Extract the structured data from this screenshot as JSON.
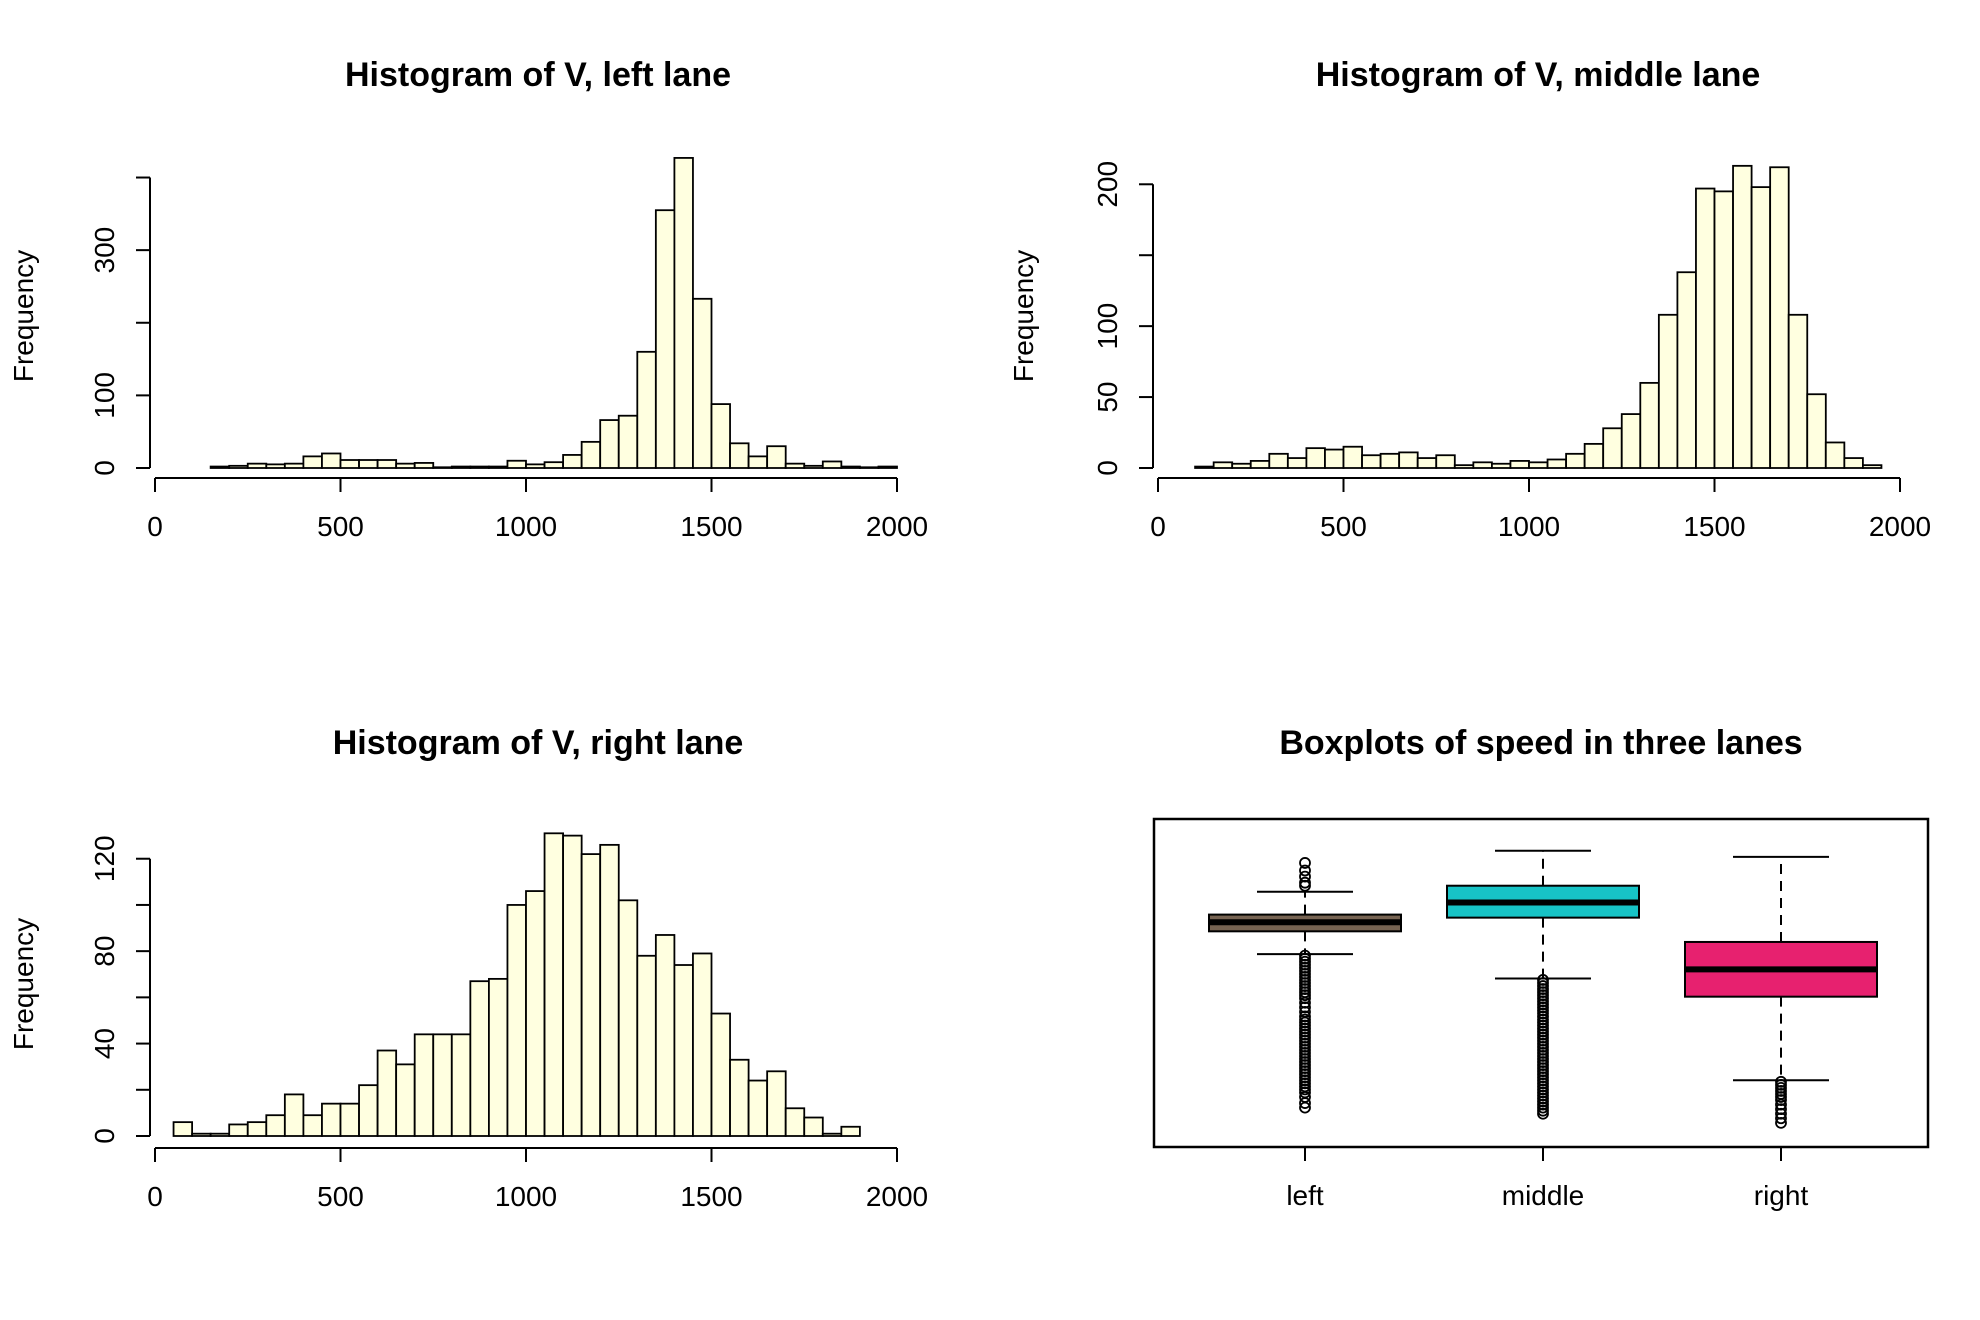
{
  "chart_data": [
    {
      "type": "bar",
      "subtype": "histogram",
      "title": "Histogram of V, left lane",
      "xlabel": "",
      "ylabel": "Frequency",
      "bin_width": 50,
      "bin_start": 150,
      "xlim": [
        0,
        2000
      ],
      "ylim": [
        0,
        420
      ],
      "x_ticks": [
        0,
        500,
        1000,
        1500,
        2000
      ],
      "x_tick_labels": [
        "0",
        "500",
        "1000",
        "1500",
        "2000"
      ],
      "y_ticks": [
        0,
        100,
        200,
        300,
        400
      ],
      "y_tick_labels": [
        "0",
        "100",
        "",
        "300",
        ""
      ],
      "values": [
        2,
        3,
        6,
        5,
        6,
        16,
        20,
        11,
        11,
        11,
        6,
        7,
        1,
        2,
        2,
        2,
        10,
        5,
        8,
        18,
        36,
        66,
        72,
        160,
        355,
        427,
        233,
        88,
        34,
        16,
        30,
        6,
        3,
        9,
        2,
        1,
        2
      ],
      "bar_color": "#ffffe0"
    },
    {
      "type": "bar",
      "subtype": "histogram",
      "title": "Histogram of V, middle lane",
      "xlabel": "",
      "ylabel": "Frequency",
      "bin_width": 50,
      "bin_start": 100,
      "xlim": [
        0,
        2000
      ],
      "ylim": [
        0,
        215
      ],
      "x_ticks": [
        0,
        500,
        1000,
        1500,
        2000
      ],
      "x_tick_labels": [
        "0",
        "500",
        "1000",
        "1500",
        "2000"
      ],
      "y_ticks": [
        0,
        50,
        100,
        150,
        200
      ],
      "y_tick_labels": [
        "0",
        "50",
        "100",
        "",
        "200"
      ],
      "values": [
        1,
        4,
        3,
        5,
        10,
        7,
        14,
        13,
        15,
        9,
        10,
        11,
        7,
        9,
        2,
        4,
        3,
        5,
        4,
        6,
        10,
        17,
        28,
        38,
        60,
        108,
        138,
        197,
        195,
        213,
        198,
        212,
        108,
        52,
        18,
        7,
        2
      ],
      "bar_color": "#ffffe0"
    },
    {
      "type": "bar",
      "subtype": "histogram",
      "title": "Histogram of V, right lane",
      "xlabel": "",
      "ylabel": "Frequency",
      "bin_width": 50,
      "bin_start": 50,
      "xlim": [
        0,
        2000
      ],
      "ylim": [
        0,
        132
      ],
      "x_ticks": [
        0,
        500,
        1000,
        1500,
        2000
      ],
      "x_tick_labels": [
        "0",
        "500",
        "1000",
        "1500",
        "2000"
      ],
      "y_ticks": [
        0,
        20,
        40,
        60,
        80,
        100,
        120
      ],
      "y_tick_labels": [
        "0",
        "",
        "40",
        "",
        "80",
        "",
        "120"
      ],
      "values": [
        6,
        1,
        1,
        5,
        6,
        9,
        18,
        9,
        14,
        14,
        22,
        37,
        31,
        44,
        44,
        44,
        67,
        68,
        100,
        106,
        131,
        130,
        122,
        126,
        102,
        78,
        87,
        74,
        79,
        53,
        33,
        24,
        28,
        12,
        8,
        1,
        4
      ],
      "bar_color": "#ffffe0"
    },
    {
      "type": "boxplot",
      "title": "Boxplots of speed in three lanes",
      "categories": [
        "left",
        "middle",
        "right"
      ],
      "ylim": [
        0,
        2000
      ],
      "boxes": [
        {
          "name": "left",
          "whisker_low": 1190,
          "q1": 1340,
          "median": 1400,
          "q3": 1450,
          "whisker_high": 1600,
          "color": "#766352",
          "outliers": [
            1640,
            1660,
            1700,
            1740,
            1790,
            1180,
            1160,
            1140,
            1120,
            1100,
            1080,
            1060,
            1040,
            1020,
            1000,
            980,
            960,
            940,
            920,
            900,
            870,
            840,
            810,
            780,
            760,
            740,
            720,
            700,
            680,
            660,
            640,
            620,
            600,
            580,
            560,
            540,
            520,
            500,
            480,
            460,
            440,
            420,
            400,
            380,
            360,
            340,
            320,
            300,
            280,
            250,
            210,
            180
          ]
        },
        {
          "name": "middle",
          "whisker_low": 1030,
          "q1": 1430,
          "median": 1530,
          "q3": 1640,
          "whisker_high": 1870,
          "color": "#17c3c6",
          "outliers": [
            1020,
            1000,
            980,
            960,
            940,
            920,
            900,
            880,
            860,
            840,
            820,
            800,
            780,
            760,
            740,
            720,
            700,
            680,
            660,
            640,
            620,
            600,
            580,
            560,
            540,
            520,
            500,
            480,
            460,
            440,
            420,
            400,
            380,
            360,
            340,
            320,
            300,
            280,
            260,
            240,
            220,
            200,
            180,
            160,
            140
          ]
        },
        {
          "name": "right",
          "whisker_low": 360,
          "q1": 910,
          "median": 1090,
          "q3": 1270,
          "whisker_high": 1830,
          "color": "#e7216f",
          "outliers": [
            350,
            330,
            310,
            290,
            270,
            250,
            230,
            200,
            170,
            140,
            110,
            80
          ]
        }
      ]
    }
  ]
}
